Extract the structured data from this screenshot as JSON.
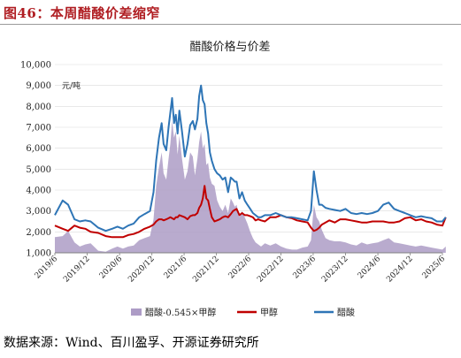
{
  "figure": {
    "title": "图46：本周醋酸价差缩窄",
    "source": "数据来源：Wind、百川盈孚、开源证券研究所"
  },
  "chart_data": {
    "type": "line",
    "title": "醋酸价格与价差",
    "ylabel": "元/吨",
    "ylim": [
      1000,
      10000
    ],
    "yticks": [
      "1,000",
      "2,000",
      "3,000",
      "4,000",
      "5,000",
      "6,000",
      "7,000",
      "8,000",
      "9,000",
      "10,000"
    ],
    "xticks": [
      "2019/6",
      "2019/12",
      "2020/6",
      "2020/12",
      "2021/6",
      "2021/12",
      "2022/6",
      "2022/12",
      "2023/6",
      "2023/12",
      "2024/6",
      "2024/12",
      "2025/6"
    ],
    "x_range": [
      "2019/6",
      "2025/6"
    ],
    "legend_position": "bottom",
    "colors": {
      "spread": "#ad9cc6",
      "methanol": "#c00000",
      "acetic_acid": "#2e75b6"
    },
    "series": [
      {
        "name": "醋酸-0.545×甲醇",
        "style": "area",
        "x": [
          "2019-06-01",
          "2019-07-15",
          "2019-08-15",
          "2019-09-20",
          "2019-10-20",
          "2019-11-20",
          "2019-12-20",
          "2020-02-01",
          "2020-03-15",
          "2020-04-20",
          "2020-05-20",
          "2020-06-20",
          "2020-07-20",
          "2020-08-20",
          "2020-09-20",
          "2020-10-20",
          "2020-11-20",
          "2020-12-10",
          "2020-12-25",
          "2021-01-10",
          "2021-01-25",
          "2021-02-05",
          "2021-02-20",
          "2021-03-05",
          "2021-03-15",
          "2021-03-25",
          "2021-04-05",
          "2021-04-15",
          "2021-04-25",
          "2021-05-05",
          "2021-05-20",
          "2021-06-05",
          "2021-06-20",
          "2021-07-05",
          "2021-07-20",
          "2021-08-01",
          "2021-08-15",
          "2021-08-25",
          "2021-09-05",
          "2021-09-15",
          "2021-09-25",
          "2021-10-05",
          "2021-10-15",
          "2021-10-25",
          "2021-11-05",
          "2021-11-20",
          "2021-12-05",
          "2021-12-20",
          "2022-01-05",
          "2022-01-20",
          "2022-02-05",
          "2022-02-20",
          "2022-03-05",
          "2022-03-15",
          "2022-03-25",
          "2022-04-10",
          "2022-04-25",
          "2022-05-10",
          "2022-05-25",
          "2022-06-10",
          "2022-06-25",
          "2022-07-10",
          "2022-07-25",
          "2022-08-10",
          "2022-09-01",
          "2022-10-01",
          "2022-11-01",
          "2022-12-01",
          "2023-01-01",
          "2023-02-01",
          "2023-03-01",
          "2023-04-01",
          "2023-05-01",
          "2023-05-20",
          "2023-06-05",
          "2023-06-20",
          "2023-07-05",
          "2023-07-20",
          "2023-08-10",
          "2023-09-01",
          "2023-10-01",
          "2023-11-01",
          "2023-12-01",
          "2024-01-01",
          "2024-02-01",
          "2024-03-01",
          "2024-04-01",
          "2024-05-01",
          "2024-06-01",
          "2024-07-01",
          "2024-08-01",
          "2024-09-01",
          "2024-10-01",
          "2024-11-01",
          "2024-12-01",
          "2025-01-01",
          "2025-02-01",
          "2025-03-01",
          "2025-04-01",
          "2025-05-01",
          "2025-06-01",
          "2025-06-20"
        ],
        "values": [
          1750,
          1800,
          2050,
          1500,
          1300,
          1400,
          1450,
          1100,
          1050,
          1200,
          1300,
          1200,
          1300,
          1350,
          1600,
          1700,
          1800,
          2600,
          4200,
          5100,
          5800,
          4800,
          4500,
          5500,
          6200,
          7300,
          6500,
          6800,
          5700,
          6600,
          5500,
          4500,
          4900,
          5800,
          5600,
          4700,
          5500,
          6300,
          6800,
          6000,
          6200,
          5200,
          5300,
          4600,
          4300,
          4200,
          3500,
          3200,
          3000,
          3300,
          2900,
          3600,
          3400,
          3200,
          3300,
          2700,
          3000,
          2700,
          2400,
          2000,
          1700,
          1500,
          1400,
          1300,
          1450,
          1350,
          1450,
          1300,
          1200,
          1150,
          1150,
          1250,
          1300,
          1600,
          3300,
          2700,
          2500,
          2100,
          1700,
          1600,
          1550,
          1550,
          1500,
          1400,
          1350,
          1500,
          1400,
          1450,
          1500,
          1600,
          1700,
          1500,
          1450,
          1400,
          1350,
          1300,
          1350,
          1300,
          1250,
          1200,
          1150,
          1300
        ]
      },
      {
        "name": "甲醇",
        "style": "line",
        "x": [
          "2019-06-01",
          "2019-07-15",
          "2019-08-15",
          "2019-09-20",
          "2019-10-20",
          "2019-11-20",
          "2019-12-20",
          "2020-02-01",
          "2020-03-15",
          "2020-04-20",
          "2020-05-20",
          "2020-06-20",
          "2020-07-20",
          "2020-08-20",
          "2020-09-20",
          "2020-10-20",
          "2020-11-20",
          "2020-12-10",
          "2020-12-25",
          "2021-01-10",
          "2021-01-25",
          "2021-02-05",
          "2021-02-20",
          "2021-03-05",
          "2021-03-15",
          "2021-03-25",
          "2021-04-05",
          "2021-04-15",
          "2021-04-25",
          "2021-05-05",
          "2021-05-20",
          "2021-06-05",
          "2021-06-20",
          "2021-07-05",
          "2021-07-20",
          "2021-08-01",
          "2021-08-15",
          "2021-08-25",
          "2021-09-05",
          "2021-09-15",
          "2021-09-25",
          "2021-10-05",
          "2021-10-15",
          "2021-10-25",
          "2021-11-05",
          "2021-11-20",
          "2021-12-05",
          "2021-12-20",
          "2022-01-05",
          "2022-01-20",
          "2022-02-05",
          "2022-02-20",
          "2022-03-05",
          "2022-03-15",
          "2022-03-25",
          "2022-04-10",
          "2022-04-25",
          "2022-05-10",
          "2022-05-25",
          "2022-06-10",
          "2022-06-25",
          "2022-07-10",
          "2022-07-25",
          "2022-08-10",
          "2022-09-01",
          "2022-10-01",
          "2022-11-01",
          "2022-12-01",
          "2023-01-01",
          "2023-02-01",
          "2023-03-01",
          "2023-04-01",
          "2023-05-01",
          "2023-05-20",
          "2023-06-05",
          "2023-06-20",
          "2023-07-05",
          "2023-07-20",
          "2023-08-10",
          "2023-09-01",
          "2023-10-01",
          "2023-11-01",
          "2023-12-01",
          "2024-01-01",
          "2024-02-01",
          "2024-03-01",
          "2024-04-01",
          "2024-05-01",
          "2024-06-01",
          "2024-07-01",
          "2024-08-01",
          "2024-09-01",
          "2024-10-01",
          "2024-11-01",
          "2024-12-01",
          "2025-01-01",
          "2025-02-01",
          "2025-03-01",
          "2025-04-01",
          "2025-05-01",
          "2025-06-01",
          "2025-06-20"
        ],
        "values": [
          2300,
          2150,
          2050,
          2300,
          2200,
          2150,
          2000,
          1950,
          1800,
          1750,
          1750,
          1750,
          1850,
          1900,
          2000,
          2150,
          2250,
          2350,
          2500,
          2600,
          2600,
          2550,
          2600,
          2650,
          2700,
          2650,
          2600,
          2700,
          2700,
          2800,
          2750,
          2700,
          2600,
          2750,
          2800,
          2800,
          2900,
          3150,
          3300,
          3600,
          4200,
          3600,
          3500,
          3100,
          2700,
          2500,
          2550,
          2600,
          2700,
          2750,
          2700,
          2850,
          3000,
          3050,
          3100,
          2800,
          2900,
          2800,
          2800,
          2750,
          2700,
          2550,
          2600,
          2550,
          2500,
          2700,
          2700,
          2800,
          2700,
          2650,
          2550,
          2500,
          2450,
          2200,
          2050,
          2100,
          2200,
          2350,
          2450,
          2550,
          2450,
          2600,
          2600,
          2550,
          2500,
          2450,
          2450,
          2500,
          2500,
          2500,
          2450,
          2450,
          2500,
          2650,
          2700,
          2550,
          2600,
          2500,
          2450,
          2350,
          2300,
          2700
        ]
      },
      {
        "name": "醋酸",
        "style": "line",
        "x": [
          "2019-06-01",
          "2019-07-15",
          "2019-08-15",
          "2019-09-20",
          "2019-10-20",
          "2019-11-20",
          "2019-12-20",
          "2020-02-01",
          "2020-03-15",
          "2020-04-20",
          "2020-05-20",
          "2020-06-20",
          "2020-07-20",
          "2020-08-20",
          "2020-09-20",
          "2020-10-20",
          "2020-11-20",
          "2020-12-10",
          "2020-12-25",
          "2021-01-10",
          "2021-01-25",
          "2021-02-05",
          "2021-02-20",
          "2021-03-05",
          "2021-03-15",
          "2021-03-25",
          "2021-04-05",
          "2021-04-15",
          "2021-04-25",
          "2021-05-05",
          "2021-05-20",
          "2021-06-05",
          "2021-06-20",
          "2021-07-05",
          "2021-07-20",
          "2021-08-01",
          "2021-08-15",
          "2021-08-25",
          "2021-09-05",
          "2021-09-15",
          "2021-09-25",
          "2021-10-05",
          "2021-10-15",
          "2021-10-25",
          "2021-11-05",
          "2021-11-20",
          "2021-12-05",
          "2021-12-20",
          "2022-01-05",
          "2022-01-20",
          "2022-02-05",
          "2022-02-20",
          "2022-03-05",
          "2022-03-15",
          "2022-03-25",
          "2022-04-10",
          "2022-04-25",
          "2022-05-10",
          "2022-05-25",
          "2022-06-10",
          "2022-06-25",
          "2022-07-10",
          "2022-07-25",
          "2022-08-10",
          "2022-09-01",
          "2022-10-01",
          "2022-11-01",
          "2022-12-01",
          "2023-01-01",
          "2023-02-01",
          "2023-03-01",
          "2023-04-01",
          "2023-05-01",
          "2023-05-20",
          "2023-06-05",
          "2023-06-20",
          "2023-07-05",
          "2023-07-20",
          "2023-08-10",
          "2023-09-01",
          "2023-10-01",
          "2023-11-01",
          "2023-12-01",
          "2024-01-01",
          "2024-02-01",
          "2024-03-01",
          "2024-04-01",
          "2024-05-01",
          "2024-06-01",
          "2024-07-01",
          "2024-08-01",
          "2024-09-01",
          "2024-10-01",
          "2024-11-01",
          "2024-12-01",
          "2025-01-01",
          "2025-02-01",
          "2025-03-01",
          "2025-04-01",
          "2025-05-01",
          "2025-06-01",
          "2025-06-20"
        ],
        "values": [
          2800,
          3500,
          3300,
          2600,
          2500,
          2550,
          2500,
          2200,
          2050,
          2150,
          2250,
          2150,
          2300,
          2400,
          2700,
          2850,
          3000,
          3900,
          5400,
          6500,
          7200,
          6200,
          5900,
          7000,
          7700,
          8400,
          7200,
          7600,
          6700,
          7800,
          6800,
          5600,
          6200,
          7100,
          7300,
          6900,
          7400,
          8500,
          9000,
          8300,
          8100,
          7200,
          6700,
          5800,
          5400,
          5000,
          4800,
          4700,
          4500,
          4600,
          3900,
          4600,
          4500,
          4400,
          4400,
          3600,
          3900,
          3500,
          3300,
          3100,
          2900,
          2800,
          2700,
          2700,
          2800,
          2800,
          2900,
          2800,
          2700,
          2700,
          2650,
          2600,
          2550,
          3000,
          4900,
          4000,
          3300,
          3300,
          3150,
          3100,
          3050,
          3000,
          3100,
          2900,
          2850,
          2900,
          2850,
          2900,
          3000,
          3300,
          3400,
          3100,
          3000,
          2900,
          2800,
          2700,
          2750,
          2700,
          2650,
          2500,
          2500,
          2700
        ]
      }
    ]
  }
}
